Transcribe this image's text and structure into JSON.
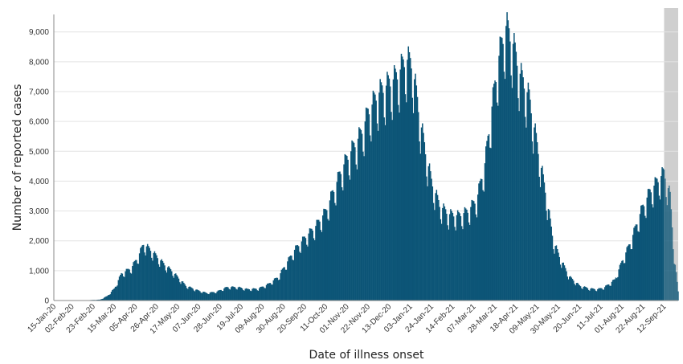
{
  "chart_data": {
    "type": "bar",
    "xlabel": "Date of illness onset",
    "ylabel": "Number of reported cases",
    "ylim": [
      0,
      9800
    ],
    "yticks": [
      0,
      1000,
      2000,
      3000,
      4000,
      5000,
      6000,
      7000,
      8000,
      9000
    ],
    "ytick_labels": [
      "0",
      "1,000",
      "2,000",
      "3,000",
      "4,000",
      "5,000",
      "6,000",
      "7,000",
      "8,000",
      "9,000"
    ],
    "x_range": [
      "2020-01-15",
      "2021-09-26"
    ],
    "xtick_labels": [
      "15-Jan-20",
      "02-Feb-20",
      "23-Feb-20",
      "15-Mar-20",
      "05-Apr-20",
      "26-Apr-20",
      "17-May-20",
      "07-Jun-20",
      "28-Jun-20",
      "19-Jul-20",
      "09-Aug-20",
      "30-Aug-20",
      "20-Sep-20",
      "11-Oct-20",
      "01-Nov-20",
      "22-Nov-20",
      "13-Dec-20",
      "03-Jan-21",
      "24-Jan-21",
      "14-Feb-21",
      "07-Mar-21",
      "28-Mar-21",
      "18-Apr-21",
      "09-May-21",
      "30-May-21",
      "20-Jun-21",
      "11-Jul-21",
      "01-Aug-21",
      "22-Aug-21",
      "12-Sep-21"
    ],
    "grid": true,
    "bar_color": "#0c5577",
    "shaded_region": {
      "start": "2021-09-12",
      "end": "2021-09-26",
      "color": "#cfcfcf"
    },
    "series": [
      {
        "x": [
          "2020-01-15",
          "2020-02-10",
          "2020-03-01",
          "2020-03-08",
          "2020-03-15",
          "2020-03-22",
          "2020-04-01",
          "2020-04-08",
          "2020-04-13",
          "2020-04-20",
          "2020-04-27",
          "2020-05-04",
          "2020-05-11",
          "2020-05-18",
          "2020-05-25",
          "2020-06-05",
          "2020-06-15",
          "2020-06-25",
          "2020-07-05",
          "2020-07-15",
          "2020-07-25",
          "2020-08-05",
          "2020-08-15",
          "2020-08-25",
          "2020-09-01",
          "2020-09-10",
          "2020-09-20",
          "2020-10-01",
          "2020-10-11",
          "2020-10-20",
          "2020-10-28",
          "2020-11-05",
          "2020-11-15",
          "2020-11-22",
          "2020-12-01",
          "2020-12-10",
          "2020-12-20",
          "2020-12-30",
          "2021-01-05",
          "2021-01-12",
          "2021-01-18",
          "2021-01-24",
          "2021-02-01",
          "2021-02-10",
          "2021-02-20",
          "2021-03-01",
          "2021-03-10",
          "2021-03-18",
          "2021-03-25",
          "2021-04-01",
          "2021-04-08",
          "2021-04-15",
          "2021-04-22",
          "2021-05-01",
          "2021-05-09",
          "2021-05-18",
          "2021-05-25",
          "2021-06-01",
          "2021-06-10",
          "2021-06-20",
          "2021-06-30",
          "2021-07-08",
          "2021-07-15",
          "2021-07-25",
          "2021-08-01",
          "2021-08-10",
          "2021-08-20",
          "2021-08-28",
          "2021-09-05",
          "2021-09-12",
          "2021-09-18",
          "2021-09-22",
          "2021-09-26"
        ],
        "values": [
          0,
          0,
          30,
          150,
          400,
          900,
          1100,
          1500,
          1900,
          1700,
          1450,
          1200,
          1000,
          750,
          500,
          350,
          250,
          300,
          450,
          450,
          380,
          400,
          550,
          800,
          1200,
          1700,
          2100,
          2500,
          3000,
          3800,
          4500,
          5000,
          5600,
          6300,
          6900,
          7200,
          7500,
          8100,
          7900,
          6200,
          5000,
          4000,
          3200,
          2900,
          2850,
          3000,
          3400,
          4600,
          6500,
          8200,
          9200,
          8600,
          7600,
          6800,
          5200,
          3500,
          2000,
          1400,
          800,
          500,
          400,
          380,
          450,
          700,
          1300,
          2000,
          3000,
          3600,
          4000,
          4300,
          3500,
          1500,
          300
        ]
      }
    ]
  }
}
